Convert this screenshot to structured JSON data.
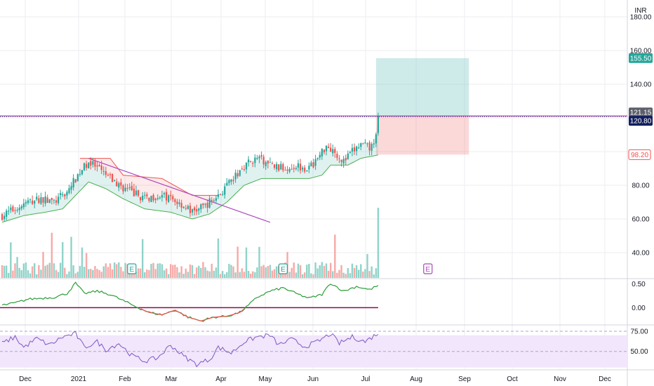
{
  "currency_label": "INR",
  "colors": {
    "up": "#26a69a",
    "down": "#ef5350",
    "vol_up": "#8fd3c9",
    "vol_down": "#f7a9a7",
    "trend": "#ab47bc",
    "last_tag": "#131f5c",
    "resist_tag": "#5d606b",
    "target_tag": "#26a69a",
    "stop_tag": "#ef5350",
    "macd": "#2e9d3a",
    "macd_neg": "#ef5350",
    "signal": "#880e4f",
    "rsi": "#7e57c2",
    "rsi_band": "#f1e6fb",
    "events": "#26a69a",
    "events_future": "#ab47bc"
  },
  "chart_data": {
    "type": "candlestick",
    "price_axis": {
      "ticks": [
        "180.00",
        "160.00",
        "140.00",
        "80.00",
        "60.00",
        "40.00"
      ],
      "tick_values": [
        180,
        160,
        140,
        80,
        60,
        40
      ],
      "range": [
        25,
        190
      ]
    },
    "price_tags": [
      {
        "label": "155.50",
        "value": 155.5,
        "kind": "target"
      },
      {
        "label": "121.15",
        "value": 121.15,
        "kind": "resist"
      },
      {
        "label": "120.80",
        "value": 120.8,
        "kind": "last"
      },
      {
        "label": "98.20",
        "value": 98.2,
        "kind": "stop"
      }
    ],
    "time_axis": [
      "Dec",
      "2021",
      "Feb",
      "Mar",
      "Apr",
      "May",
      "Jun",
      "Jul",
      "Aug",
      "Sep",
      "Oct",
      "Nov",
      "Dec"
    ],
    "candles_keypoints": [
      [
        0,
        62
      ],
      [
        6,
        66
      ],
      [
        12,
        70
      ],
      [
        18,
        72
      ],
      [
        24,
        70
      ],
      [
        30,
        76
      ],
      [
        36,
        88
      ],
      [
        40,
        94
      ],
      [
        44,
        90
      ],
      [
        48,
        86
      ],
      [
        54,
        80
      ],
      [
        60,
        76
      ],
      [
        66,
        72
      ],
      [
        72,
        74
      ],
      [
        78,
        72
      ],
      [
        84,
        68
      ],
      [
        88,
        64
      ],
      [
        94,
        68
      ],
      [
        100,
        74
      ],
      [
        106,
        82
      ],
      [
        112,
        92
      ],
      [
        118,
        96
      ],
      [
        124,
        92
      ],
      [
        130,
        90
      ],
      [
        136,
        92
      ],
      [
        142,
        90
      ],
      [
        146,
        96
      ],
      [
        150,
        104
      ],
      [
        154,
        100
      ],
      [
        158,
        94
      ],
      [
        162,
        100
      ],
      [
        166,
        104
      ],
      [
        170,
        102
      ],
      [
        172,
        104
      ],
      [
        174,
        121
      ]
    ],
    "trailing_stop_keypoints": [
      [
        0,
        58
      ],
      [
        10,
        62
      ],
      [
        20,
        64
      ],
      [
        28,
        66
      ],
      [
        34,
        74
      ],
      [
        40,
        82
      ],
      [
        48,
        78
      ],
      [
        56,
        72
      ],
      [
        66,
        66
      ],
      [
        78,
        64
      ],
      [
        88,
        60
      ],
      [
        96,
        63
      ],
      [
        104,
        70
      ],
      [
        112,
        80
      ],
      [
        120,
        84
      ],
      [
        132,
        84
      ],
      [
        142,
        84
      ],
      [
        148,
        86
      ],
      [
        152,
        92
      ],
      [
        160,
        92
      ],
      [
        166,
        96
      ],
      [
        174,
        98
      ]
    ],
    "resistance_band": [
      [
        36,
        96
      ],
      [
        50,
        96
      ],
      [
        56,
        86
      ],
      [
        74,
        84
      ],
      [
        88,
        74
      ],
      [
        100,
        74
      ]
    ],
    "trendline": {
      "start": [
        40,
        96
      ],
      "end": [
        124,
        58
      ]
    },
    "resistance_level": 121.15,
    "last_price": 120.8,
    "position": {
      "entry": 120.8,
      "target": 155.5,
      "stop": 98.2,
      "from_index": 174,
      "to_index": 216
    },
    "earnings_markers": [
      {
        "label": "E",
        "index": 60
      },
      {
        "label": "E",
        "index": 130
      },
      {
        "label": "E",
        "index": 197
      }
    ],
    "macd": {
      "ticks": [
        "0.50",
        "0.00"
      ],
      "tick_values": [
        0.5,
        0.0
      ],
      "range": [
        -0.35,
        0.6
      ],
      "keypoints": [
        [
          0,
          0.05
        ],
        [
          6,
          0.1
        ],
        [
          12,
          0.18
        ],
        [
          18,
          0.2
        ],
        [
          24,
          0.22
        ],
        [
          30,
          0.3
        ],
        [
          34,
          0.52
        ],
        [
          38,
          0.3
        ],
        [
          44,
          0.35
        ],
        [
          50,
          0.28
        ],
        [
          56,
          0.15
        ],
        [
          62,
          0.02
        ],
        [
          68,
          -0.1
        ],
        [
          74,
          -0.15
        ],
        [
          80,
          -0.05
        ],
        [
          86,
          -0.2
        ],
        [
          92,
          -0.28
        ],
        [
          98,
          -0.2
        ],
        [
          104,
          -0.18
        ],
        [
          110,
          -0.1
        ],
        [
          114,
          0.05
        ],
        [
          118,
          0.22
        ],
        [
          124,
          0.35
        ],
        [
          130,
          0.42
        ],
        [
          136,
          0.3
        ],
        [
          142,
          0.2
        ],
        [
          148,
          0.28
        ],
        [
          152,
          0.52
        ],
        [
          158,
          0.35
        ],
        [
          164,
          0.45
        ],
        [
          170,
          0.38
        ],
        [
          174,
          0.47
        ]
      ],
      "signal_level": 0.0
    },
    "rsi": {
      "ticks": [
        "75.00",
        "50.00"
      ],
      "tick_values": [
        75,
        50
      ],
      "range": [
        28,
        82
      ],
      "band": [
        30,
        70
      ],
      "keypoints": [
        [
          0,
          60
        ],
        [
          6,
          68
        ],
        [
          10,
          55
        ],
        [
          16,
          66
        ],
        [
          22,
          58
        ],
        [
          28,
          68
        ],
        [
          34,
          72
        ],
        [
          38,
          55
        ],
        [
          44,
          62
        ],
        [
          48,
          52
        ],
        [
          54,
          60
        ],
        [
          60,
          45
        ],
        [
          66,
          38
        ],
        [
          72,
          42
        ],
        [
          78,
          58
        ],
        [
          84,
          44
        ],
        [
          90,
          34
        ],
        [
          96,
          40
        ],
        [
          100,
          55
        ],
        [
          106,
          48
        ],
        [
          112,
          62
        ],
        [
          118,
          68
        ],
        [
          124,
          70
        ],
        [
          128,
          58
        ],
        [
          134,
          65
        ],
        [
          140,
          56
        ],
        [
          146,
          62
        ],
        [
          152,
          72
        ],
        [
          156,
          60
        ],
        [
          162,
          68
        ],
        [
          168,
          62
        ],
        [
          174,
          73
        ]
      ]
    }
  }
}
